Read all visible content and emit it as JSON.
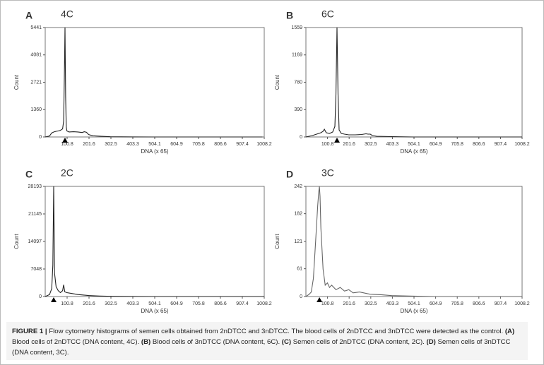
{
  "chart_data": [
    {
      "type": "line",
      "panel": "A",
      "annotation": "4C",
      "xlabel": "DNA (x 65)",
      "ylabel": "Count",
      "color": "#222222",
      "x": [
        0,
        20,
        30,
        40,
        50,
        60,
        70,
        80,
        85,
        88,
        91,
        94,
        97,
        100,
        110,
        130,
        150,
        170,
        180,
        190,
        200,
        220,
        260,
        300,
        400,
        500,
        600,
        700,
        800,
        900,
        1000
      ],
      "values": [
        0,
        50,
        200,
        250,
        280,
        300,
        330,
        400,
        800,
        3000,
        5441,
        2000,
        500,
        300,
        250,
        260,
        250,
        220,
        260,
        230,
        120,
        60,
        30,
        10,
        5,
        0,
        0,
        0,
        0,
        0,
        0
      ],
      "xlim": [
        0,
        1008.2
      ],
      "ylim": [
        0,
        5441
      ],
      "xticks": [
        100.8,
        201.6,
        302.5,
        403.3,
        504.1,
        604.9,
        705.8,
        806.6,
        907.4,
        1008.2
      ],
      "yticks": [
        0,
        1360,
        2721,
        4081,
        5441
      ]
    },
    {
      "type": "line",
      "panel": "B",
      "annotation": "6C",
      "xlabel": "DNA (x 65)",
      "ylabel": "Count",
      "color": "#222222",
      "x": [
        0,
        30,
        50,
        70,
        80,
        86,
        95,
        110,
        125,
        135,
        140,
        145,
        150,
        155,
        165,
        180,
        200,
        230,
        260,
        280,
        290,
        300,
        310,
        330,
        400,
        500,
        700,
        1008
      ],
      "values": [
        0,
        20,
        40,
        60,
        80,
        110,
        60,
        50,
        70,
        150,
        600,
        1559,
        600,
        100,
        50,
        40,
        30,
        30,
        35,
        45,
        40,
        40,
        20,
        10,
        5,
        0,
        0,
        0
      ],
      "xlim": [
        0,
        1008.2
      ],
      "ylim": [
        0,
        1559
      ],
      "xticks": [
        100.8,
        201.6,
        302.5,
        403.3,
        504.1,
        604.9,
        705.8,
        806.6,
        907.4,
        1008.2
      ],
      "yticks": [
        0,
        390,
        780,
        1169,
        1559
      ]
    },
    {
      "type": "line",
      "panel": "C",
      "annotation": "2C",
      "xlabel": "DNA (x 65)",
      "ylabel": "Count",
      "color": "#222222",
      "x": [
        0,
        20,
        30,
        35,
        39,
        43,
        50,
        60,
        70,
        80,
        85,
        90,
        100,
        120,
        150,
        200,
        250,
        300,
        400,
        500,
        700,
        1008
      ],
      "values": [
        0,
        500,
        2000,
        8000,
        28193,
        6000,
        2500,
        1500,
        1000,
        1500,
        3000,
        1200,
        1000,
        800,
        500,
        250,
        120,
        60,
        20,
        0,
        0,
        0
      ],
      "xlim": [
        0,
        1008.2
      ],
      "ylim": [
        0,
        28193
      ],
      "xticks": [
        100.8,
        201.6,
        302.5,
        403.3,
        504.1,
        604.9,
        705.8,
        806.6,
        907.4,
        1008.2
      ],
      "yticks": [
        0,
        7048,
        14097,
        21145,
        28193
      ]
    },
    {
      "type": "line",
      "panel": "D",
      "annotation": "3C",
      "xlabel": "DNA (x 65)",
      "ylabel": "Count",
      "color": "#666666",
      "x": [
        0,
        15,
        25,
        35,
        45,
        55,
        60,
        63,
        66,
        70,
        80,
        90,
        100,
        110,
        120,
        140,
        160,
        180,
        200,
        220,
        250,
        300,
        350,
        400,
        500,
        600,
        800,
        1008
      ],
      "values": [
        0,
        5,
        10,
        40,
        120,
        200,
        230,
        242,
        220,
        150,
        60,
        25,
        30,
        20,
        25,
        15,
        20,
        12,
        15,
        8,
        10,
        5,
        4,
        2,
        1,
        0,
        0,
        0
      ],
      "xlim": [
        0,
        1008.2
      ],
      "ylim": [
        0,
        242
      ],
      "xticks": [
        100.8,
        201.6,
        302.5,
        403.3,
        504.1,
        604.9,
        705.8,
        806.6,
        907.4,
        1008.2
      ],
      "yticks": [
        0,
        61,
        121,
        182,
        242
      ]
    }
  ],
  "caption": [
    {
      "text": "FIGURE 1 |",
      "bold": true
    },
    {
      "text": " Flow cytometry histograms of semen cells obtained from 2nDTCC and 3nDTCC. The blood cells of 2nDTCC and 3nDTCC were detected as the control. "
    },
    {
      "text": "(A)",
      "bold": true
    },
    {
      "text": " Blood cells of 2nDTCC (DNA content, 4C). "
    },
    {
      "text": "(B)",
      "bold": true
    },
    {
      "text": " Blood cells of 3nDTCC (DNA content, 6C). "
    },
    {
      "text": "(C)",
      "bold": true
    },
    {
      "text": " Semen cells of 2nDTCC (DNA content, 2C). "
    },
    {
      "text": "(D)",
      "bold": true
    },
    {
      "text": " Semen cells of 3nDTCC (DNA content, 3C)."
    }
  ]
}
